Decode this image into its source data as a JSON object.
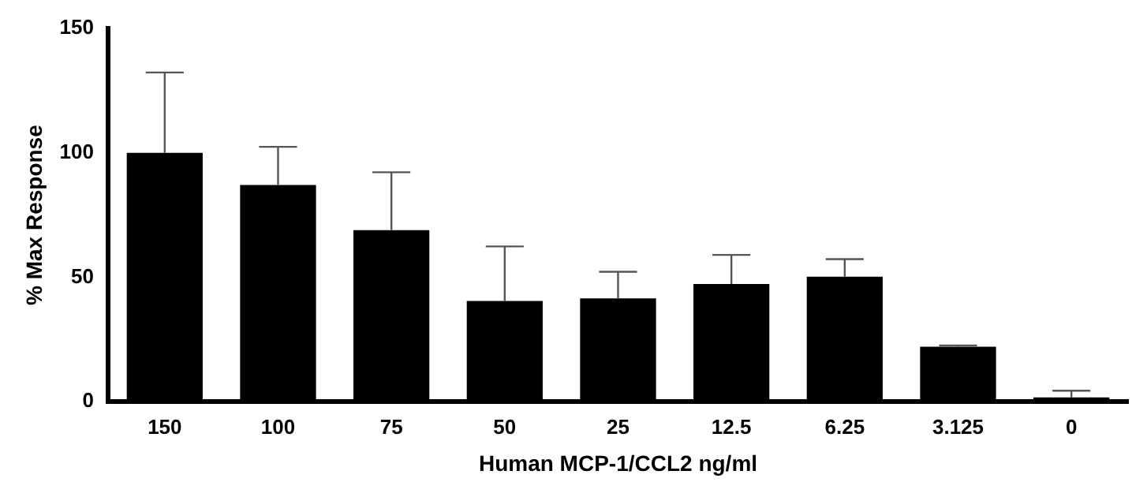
{
  "chart_data": {
    "type": "bar",
    "xlabel": "Human MCP-1/CCL2 ng/ml",
    "ylabel": "% Max Response",
    "categories": [
      "150",
      "100",
      "75",
      "50",
      "25",
      "12.5",
      "6.25",
      "3.125",
      "0"
    ],
    "values": [
      100,
      87.1,
      68.9,
      40.5,
      41.5,
      47.3,
      50.2,
      22.1,
      1.7
    ],
    "errors": [
      [
        100,
        132.3
      ],
      [
        87.1,
        102.4
      ],
      [
        68.9,
        92.2
      ],
      [
        40.5,
        62.4
      ],
      [
        41.5,
        52.2
      ],
      [
        47.3,
        59
      ],
      [
        50.2,
        57.3
      ],
      [
        22.1,
        22.6
      ],
      [
        1.7,
        4.4
      ]
    ],
    "color": "#000000",
    "ylim": [
      0,
      150
    ],
    "yticks": [
      0,
      50,
      100,
      150
    ],
    "grid": false,
    "legend": false
  }
}
